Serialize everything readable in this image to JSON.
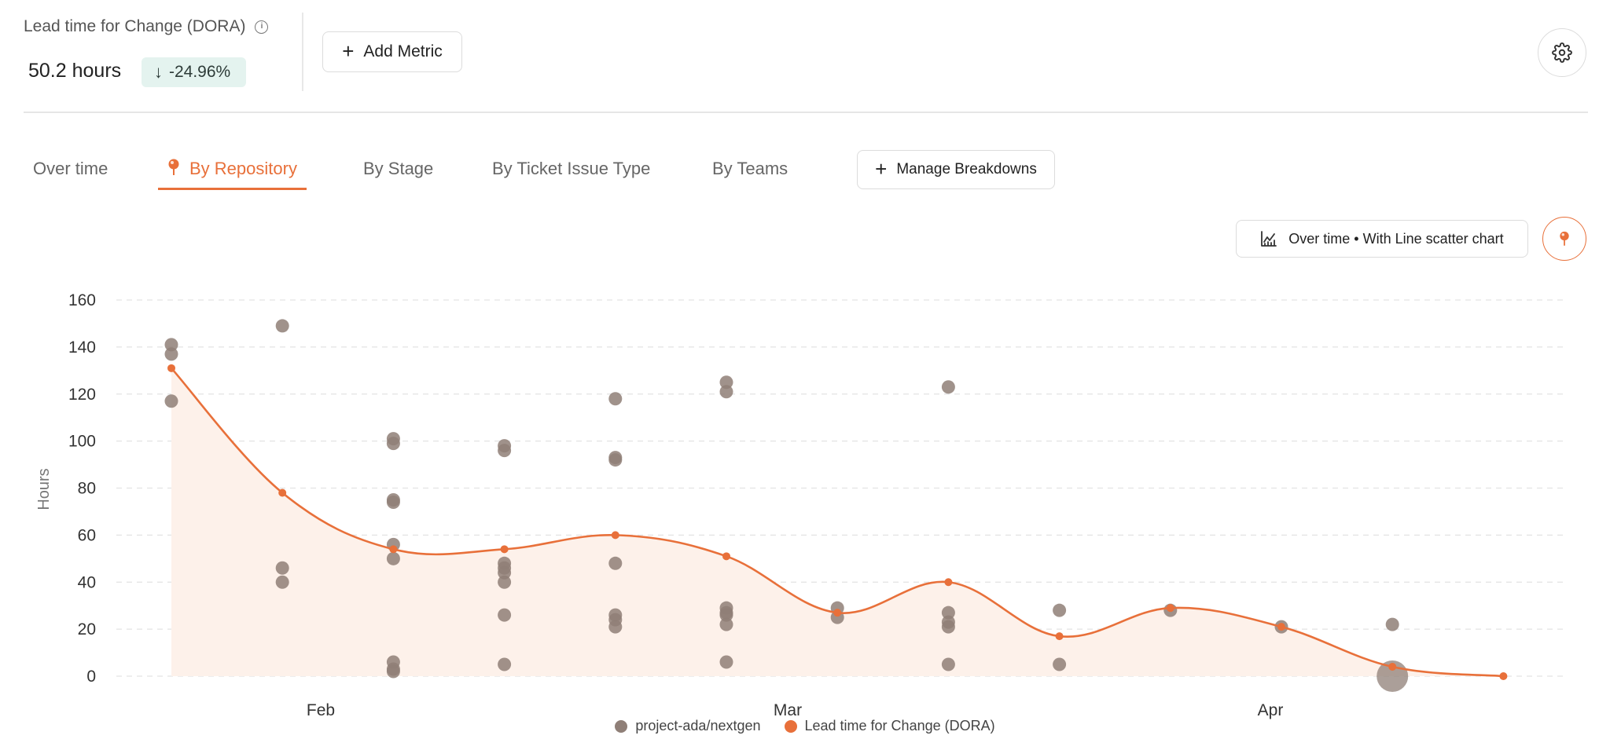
{
  "header": {
    "metric_title": "Lead time for Change (DORA)",
    "metric_value": "50.2 hours",
    "delta": "-24.96%",
    "add_metric_label": "Add Metric"
  },
  "tabs": [
    {
      "label": "Over time",
      "active": false
    },
    {
      "label": "By Repository",
      "active": true
    },
    {
      "label": "By Stage",
      "active": false
    },
    {
      "label": "By Ticket Issue Type",
      "active": false
    },
    {
      "label": "By Teams",
      "active": false
    }
  ],
  "manage_breakdowns_label": "Manage Breakdowns",
  "chart_mode_label": "Over time • With Line scatter chart",
  "colors": {
    "accent": "#e8703a",
    "scatter": "#8f7f77",
    "fill": "#fdf1ea",
    "delta_bg": "#e4f3ef"
  },
  "chart_data": {
    "type": "scatter",
    "ylabel": "Hours",
    "xlabel": "",
    "ylim": [
      0,
      160
    ],
    "y_ticks": [
      0,
      20,
      40,
      60,
      80,
      100,
      120,
      140,
      160
    ],
    "x_ticks": [
      "Feb",
      "Mar",
      "Apr"
    ],
    "grid": true,
    "legend": "bottom",
    "x_periods": [
      "Jan 25",
      "Feb 1",
      "Feb 8",
      "Feb 15",
      "Feb 22",
      "Mar 1",
      "Mar 8",
      "Mar 15",
      "Mar 22",
      "Mar 29",
      "Apr 5",
      "Apr 12",
      "Apr 19"
    ],
    "series": [
      {
        "name": "project-ada/nextgen",
        "kind": "scatter",
        "points": [
          {
            "x": "Jan 25",
            "y": 141
          },
          {
            "x": "Jan 25",
            "y": 137
          },
          {
            "x": "Jan 25",
            "y": 117
          },
          {
            "x": "Feb 1",
            "y": 149
          },
          {
            "x": "Feb 1",
            "y": 46
          },
          {
            "x": "Feb 1",
            "y": 40
          },
          {
            "x": "Feb 8",
            "y": 101
          },
          {
            "x": "Feb 8",
            "y": 99
          },
          {
            "x": "Feb 8",
            "y": 75
          },
          {
            "x": "Feb 8",
            "y": 74
          },
          {
            "x": "Feb 8",
            "y": 56
          },
          {
            "x": "Feb 8",
            "y": 50
          },
          {
            "x": "Feb 8",
            "y": 6
          },
          {
            "x": "Feb 8",
            "y": 3
          },
          {
            "x": "Feb 8",
            "y": 2
          },
          {
            "x": "Feb 15",
            "y": 98
          },
          {
            "x": "Feb 15",
            "y": 96
          },
          {
            "x": "Feb 15",
            "y": 48
          },
          {
            "x": "Feb 15",
            "y": 46
          },
          {
            "x": "Feb 15",
            "y": 44
          },
          {
            "x": "Feb 15",
            "y": 40
          },
          {
            "x": "Feb 15",
            "y": 26
          },
          {
            "x": "Feb 15",
            "y": 5
          },
          {
            "x": "Feb 22",
            "y": 118
          },
          {
            "x": "Feb 22",
            "y": 93
          },
          {
            "x": "Feb 22",
            "y": 92
          },
          {
            "x": "Feb 22",
            "y": 48
          },
          {
            "x": "Feb 22",
            "y": 26
          },
          {
            "x": "Feb 22",
            "y": 24
          },
          {
            "x": "Feb 22",
            "y": 21
          },
          {
            "x": "Mar 1",
            "y": 125
          },
          {
            "x": "Mar 1",
            "y": 121
          },
          {
            "x": "Mar 1",
            "y": 29
          },
          {
            "x": "Mar 1",
            "y": 27
          },
          {
            "x": "Mar 1",
            "y": 26
          },
          {
            "x": "Mar 1",
            "y": 22
          },
          {
            "x": "Mar 1",
            "y": 6
          },
          {
            "x": "Mar 8",
            "y": 29
          },
          {
            "x": "Mar 8",
            "y": 25
          },
          {
            "x": "Mar 15",
            "y": 123
          },
          {
            "x": "Mar 15",
            "y": 27
          },
          {
            "x": "Mar 15",
            "y": 23
          },
          {
            "x": "Mar 15",
            "y": 21
          },
          {
            "x": "Mar 15",
            "y": 5
          },
          {
            "x": "Mar 22",
            "y": 28
          },
          {
            "x": "Mar 22",
            "y": 5
          },
          {
            "x": "Mar 29",
            "y": 28
          },
          {
            "x": "Apr 5",
            "y": 21
          },
          {
            "x": "Apr 12",
            "y": 22
          },
          {
            "x": "Apr 12",
            "y": 0,
            "large": true
          }
        ]
      },
      {
        "name": "Lead time for Change (DORA)",
        "kind": "line",
        "values": [
          131,
          78,
          54,
          54,
          60,
          51,
          27,
          40,
          17,
          29,
          21,
          4,
          0
        ]
      }
    ]
  }
}
